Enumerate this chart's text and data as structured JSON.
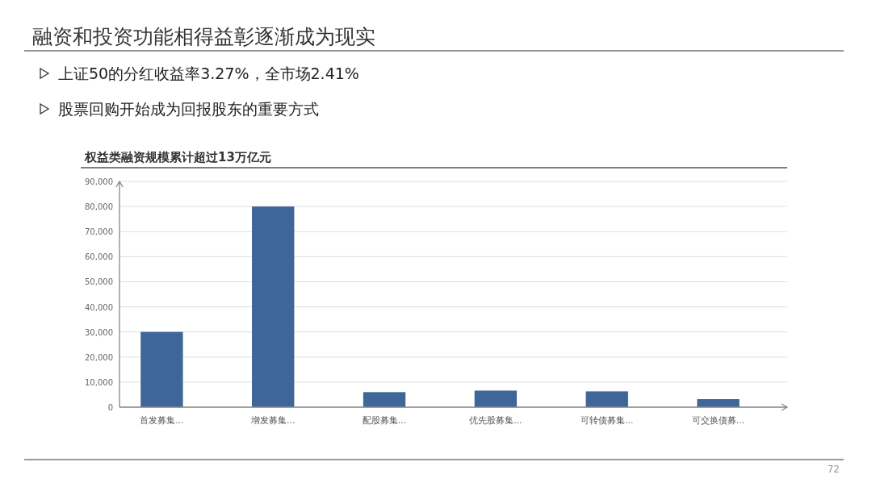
{
  "chart_data": {
    "type": "bar",
    "title": "融资和投资功能相得益彰逐渐成为现实",
    "subtitle": "权益类融资规模累计超过13万亿元",
    "annotations": [
      "上证50的分红收益率3.27%，全市场2.41%",
      "股票回购开始成为回报股东的重要方式",
      "72"
    ],
    "categories": [
      "首发募集...",
      "增发募集...",
      "配股募集...",
      "优先股募集...",
      "可转债募集...",
      "可交换债募..."
    ],
    "values": [
      30000,
      80000,
      6000,
      6600,
      6300,
      3200
    ],
    "color": "#3f6698",
    "ylim": [
      0,
      90000
    ],
    "yticks": [
      {
        "value": 0,
        "label": "0"
      },
      {
        "value": 10000,
        "label": "10,000"
      },
      {
        "value": 20000,
        "label": "20,000"
      },
      {
        "value": 30000,
        "label": "30,000"
      },
      {
        "value": 40000,
        "label": "40,000"
      },
      {
        "value": 50000,
        "label": "50,000"
      },
      {
        "value": 60000,
        "label": "60,000"
      },
      {
        "value": 70000,
        "label": "70,000"
      },
      {
        "value": 80000,
        "label": "80,000"
      },
      {
        "value": 90000,
        "label": "90,000"
      }
    ],
    "grid": "y"
  }
}
